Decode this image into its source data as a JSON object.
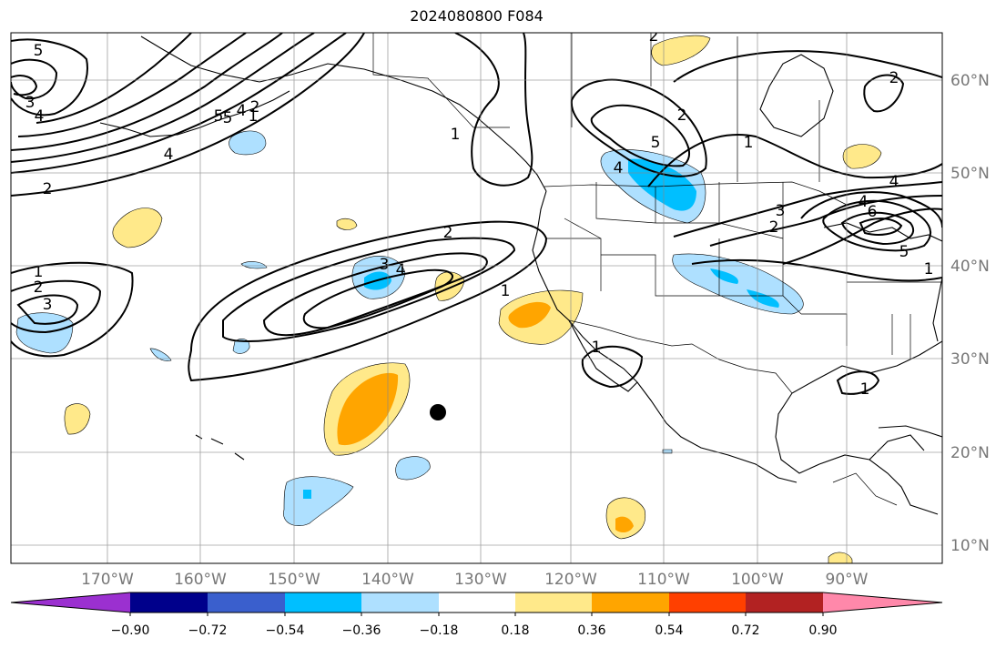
{
  "title": "2024080800 F084",
  "map": {
    "lon_labels": [
      "170°W",
      "160°W",
      "150°W",
      "140°W",
      "130°W",
      "120°W",
      "110°W",
      "100°W",
      "90°W"
    ],
    "lat_labels": [
      "60°N",
      "50°N",
      "40°N",
      "30°N",
      "20°N",
      "10°N"
    ],
    "contour_labels": [
      "5",
      "3",
      "4",
      "5",
      "4",
      "4",
      "5",
      "2",
      "2",
      "1",
      "1",
      "2",
      "3",
      "2",
      "3",
      "4",
      "1",
      "1",
      "2",
      "1",
      "2",
      "3",
      "4",
      "5",
      "4",
      "5",
      "6",
      "4",
      "1",
      "1",
      "2",
      "2",
      "1"
    ]
  },
  "colorbar": {
    "colors": [
      "#9b30d0",
      "#00008b",
      "#3a5fcd",
      "#00bfff",
      "#aee0ff",
      "#ffffff",
      "#ffe98a",
      "#ffa500",
      "#ff4000",
      "#b22222",
      "#ff88aa"
    ],
    "tick_labels": [
      "−0.90",
      "−0.72",
      "−0.54",
      "−0.36",
      "−0.18",
      "0.18",
      "0.36",
      "0.54",
      "0.72",
      "0.90"
    ]
  }
}
